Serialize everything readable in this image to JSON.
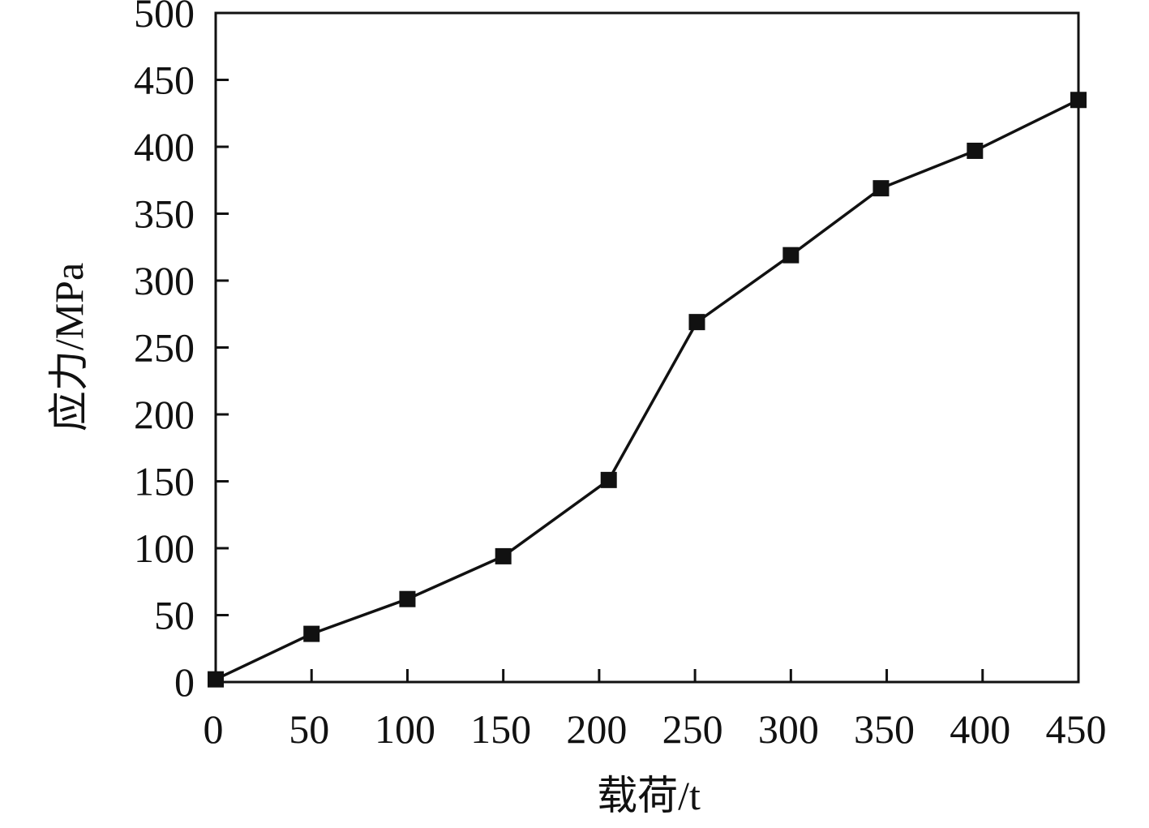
{
  "chart_data": {
    "type": "line",
    "title": "",
    "xlabel": "载荷/t",
    "ylabel": "应力/MPa",
    "xlim": [
      0,
      450
    ],
    "ylim": [
      0,
      500
    ],
    "x_ticks": [
      0,
      50,
      100,
      150,
      200,
      250,
      300,
      350,
      400,
      450
    ],
    "y_ticks": [
      0,
      50,
      100,
      150,
      200,
      250,
      300,
      350,
      400,
      450,
      500
    ],
    "grid": false,
    "legend": "none",
    "marker": "square",
    "line_color": "#111111",
    "series": [
      {
        "x": [
          0,
          50,
          100,
          150,
          205,
          251,
          300,
          347,
          396,
          450
        ],
        "y": [
          2,
          36,
          62,
          94,
          151,
          269,
          319,
          369,
          397,
          435
        ]
      }
    ]
  }
}
